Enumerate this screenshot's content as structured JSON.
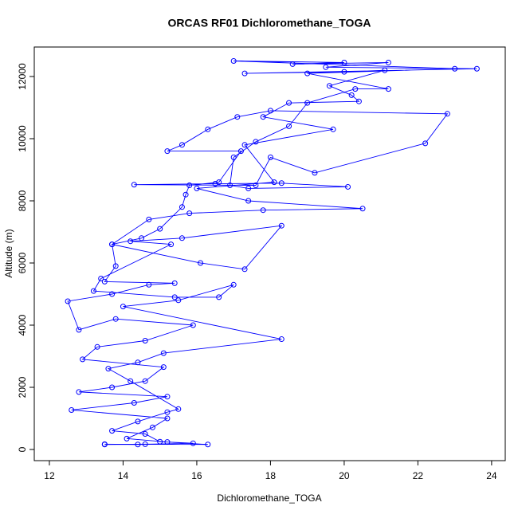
{
  "chart_data": {
    "type": "line",
    "markers": "open-circle",
    "title": "ORCAS RF01 Dichloromethane_TOGA",
    "x_label": "Dichloromethane_TOGA",
    "y_label": "Altitude (m)",
    "color": "#0000ff",
    "xlim": [
      11.59,
      24.37
    ],
    "ylim": [
      -359,
      12949
    ],
    "xticks": [
      12,
      14,
      16,
      18,
      20,
      22,
      24
    ],
    "yticks": [
      0,
      2000,
      4000,
      6000,
      8000,
      10000,
      12000
    ],
    "x": [
      13.5,
      14.6,
      16.3,
      15.2,
      14.1,
      14.8,
      15.2,
      12.6,
      14.3,
      15.2,
      12.8,
      13.7,
      14.6,
      15.1,
      12.9,
      13.3,
      14.6,
      15.9,
      13.8,
      12.8,
      12.5,
      13.7,
      14.7,
      15.4,
      13.5,
      13.8,
      13.7,
      14.5,
      15.0,
      15.6,
      15.7,
      15.8,
      16.6,
      17.2,
      15.2,
      15.6,
      16.3,
      17.1,
      18.0,
      22.8,
      22.2,
      19.2,
      18.0,
      17.6,
      14.3,
      16.5,
      18.3,
      20.1,
      17.4,
      16.9,
      17.0,
      17.6,
      18.5,
      19.0,
      20.3,
      21.2,
      19.0,
      23.0,
      17.0,
      20.0,
      18.6,
      21.2,
      19.5,
      23.6,
      17.3,
      20.0,
      21.1,
      19.6,
      20.2,
      20.4,
      18.5,
      17.8,
      19.7,
      17.3,
      18.1,
      16.0,
      17.4,
      20.5,
      17.8,
      15.8,
      14.7,
      13.7,
      16.1,
      17.3,
      18.3,
      15.6,
      14.2,
      15.3,
      13.4,
      13.2,
      15.4,
      16.6,
      17.0,
      15.5,
      14.0,
      18.3,
      15.1,
      14.4,
      13.6,
      14.2,
      15.5,
      15.2,
      14.4,
      13.7,
      14.6,
      15.0,
      15.9,
      14.4,
      13.5
    ],
    "values": [
      160,
      170,
      160,
      240,
      350,
      710,
      1000,
      1270,
      1500,
      1700,
      1850,
      2000,
      2200,
      2650,
      2900,
      3300,
      3500,
      4000,
      4200,
      3850,
      4770,
      5000,
      5300,
      5350,
      5400,
      5900,
      6600,
      6800,
      7100,
      7800,
      8200,
      8500,
      8600,
      9600,
      9600,
      9800,
      10300,
      10700,
      10900,
      10800,
      9850,
      8900,
      9400,
      8500,
      8520,
      8550,
      8570,
      8450,
      8400,
      8500,
      9400,
      9900,
      10400,
      11150,
      11600,
      11600,
      12100,
      12250,
      12500,
      12450,
      12400,
      12450,
      12300,
      12250,
      12100,
      12150,
      12200,
      11700,
      11400,
      11200,
      11150,
      10700,
      10300,
      9800,
      8600,
      8400,
      8000,
      7750,
      7700,
      7600,
      7400,
      6600,
      6000,
      5800,
      7200,
      6800,
      6700,
      6600,
      5500,
      5100,
      4900,
      4900,
      5300,
      4800,
      4600,
      3550,
      3100,
      2800,
      2600,
      2200,
      1300,
      1200,
      900,
      600,
      500,
      250,
      200,
      160,
      170
    ]
  }
}
